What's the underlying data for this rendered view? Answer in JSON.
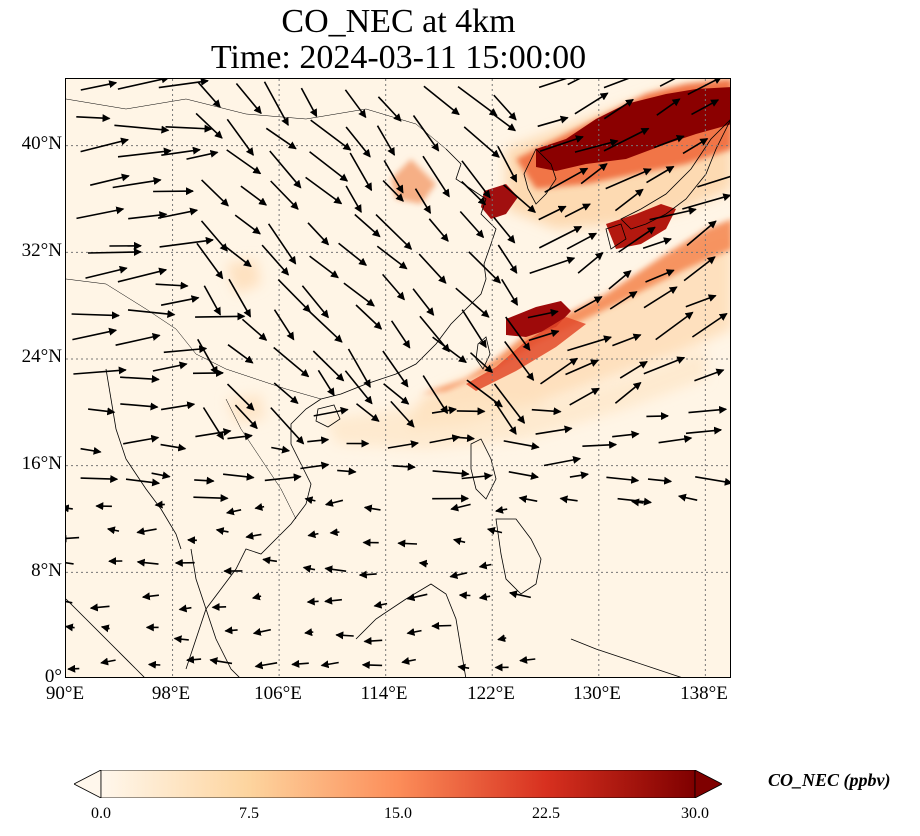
{
  "title": {
    "line1": "CO_NEC at 4km",
    "line2": "Time: 2024-03-11 15:00:00"
  },
  "map": {
    "lat_labels": [
      "40°N",
      "32°N",
      "24°N",
      "16°N",
      "8°N",
      "0°"
    ],
    "lon_labels": [
      "90°E",
      "98°E",
      "106°E",
      "114°E",
      "122°E",
      "130°E",
      "138°E"
    ],
    "extent": {
      "lon_min": 90,
      "lon_max": 140,
      "lat_min": 0,
      "lat_max": 45
    },
    "gridlines": "dotted"
  },
  "colorbar": {
    "label": "CO_NEC (ppbv)",
    "ticks": [
      "0.0",
      "7.5",
      "15.0",
      "22.5",
      "30.0"
    ],
    "range": [
      0,
      30
    ],
    "colormap": "OrRd",
    "colors": [
      "#fff7ec",
      "#fdd49e",
      "#fc8d59",
      "#d7301f",
      "#7f0000"
    ]
  }
}
